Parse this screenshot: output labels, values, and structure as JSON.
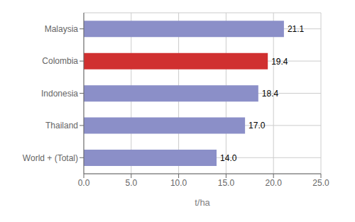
{
  "chart_data": {
    "type": "bar",
    "orientation": "horizontal",
    "categories": [
      "World + (Total)",
      "Thailand",
      "Indonesia",
      "Colombia",
      "Malaysia"
    ],
    "values": [
      14.0,
      17.0,
      18.4,
      19.4,
      21.1
    ],
    "value_labels": [
      "14.0",
      "17.0",
      "18.4",
      "19.4",
      "21.1"
    ],
    "data_labels": true,
    "colors": [
      "#8b8fc8",
      "#8b8fc8",
      "#8b8fc8",
      "#d03030",
      "#8b8fc8"
    ],
    "xlabel": "t/ha",
    "xlim": [
      0,
      25.0
    ],
    "xticks": [
      {
        "value": 0.0,
        "label": "0.0"
      },
      {
        "value": 5.0,
        "label": "5.0"
      },
      {
        "value": 10.0,
        "label": "10.0"
      },
      {
        "value": 15.0,
        "label": "15.0"
      },
      {
        "value": 20.0,
        "label": "20.0"
      },
      {
        "value": 25.0,
        "label": "25.0"
      }
    ],
    "grid": true
  }
}
